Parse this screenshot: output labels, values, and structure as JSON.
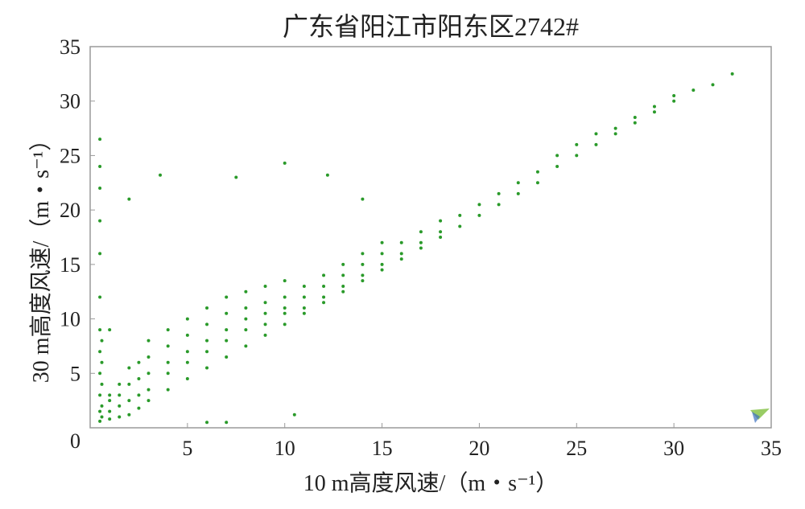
{
  "chart_data": {
    "type": "scatter",
    "title": "广东省阳江市阳东区2742#",
    "x_label": "10 m高度风速/（m・s⁻¹）",
    "y_label": "30 m高度风速/（m・s⁻¹）",
    "color": "#2a9a2a",
    "xlim": [
      0,
      35
    ],
    "xticks": [
      5,
      10,
      15,
      20,
      25,
      30,
      35
    ],
    "ylim": [
      0,
      35
    ],
    "yticks": [
      0,
      5,
      10,
      15,
      20,
      25,
      30,
      35
    ],
    "x": [
      0.5,
      0.5,
      0.5,
      0.5,
      0.5,
      0.5,
      0.5,
      0.5,
      0.5,
      0.5,
      0.5,
      0.5,
      0.6,
      0.6,
      0.6,
      0.6,
      0.6,
      1,
      1,
      1,
      1,
      1,
      1.5,
      1.5,
      1.5,
      1.5,
      2,
      2,
      2,
      2,
      2.5,
      2.5,
      2.5,
      2.5,
      3,
      3,
      3,
      3,
      3,
      4,
      4,
      4,
      4,
      4,
      5,
      5,
      5,
      5,
      5,
      6,
      6,
      6,
      6,
      6,
      6,
      7,
      7,
      7,
      7,
      7,
      7,
      8,
      8,
      8,
      8,
      8,
      9,
      9,
      9,
      9,
      9,
      10,
      10,
      10,
      10,
      10,
      11,
      11,
      11,
      11,
      12,
      12,
      12,
      12,
      13,
      13,
      13,
      13,
      14,
      14,
      14,
      14,
      15,
      15,
      15,
      15,
      16,
      16,
      16,
      17,
      17,
      17,
      18,
      18,
      18,
      19,
      19,
      20,
      20,
      21,
      21,
      22,
      22,
      23,
      23,
      24,
      24,
      25,
      25,
      26,
      26,
      27,
      27,
      28,
      28,
      29,
      29,
      30,
      30,
      31,
      32,
      33,
      3.6,
      7.5,
      10,
      12.2,
      2,
      14,
      10.5
    ],
    "values": [
      0.6,
      1.5,
      3,
      5,
      7,
      9,
      12,
      16,
      19,
      22,
      24,
      26.5,
      1,
      2,
      4,
      6,
      8,
      0.8,
      1.5,
      2.5,
      3,
      9,
      1,
      2,
      3,
      4,
      1.2,
      2.5,
      4,
      5.5,
      1.8,
      3,
      4.5,
      6,
      2.5,
      3.5,
      5,
      6.5,
      8,
      3.5,
      5,
      6,
      7.5,
      9,
      4.5,
      6,
      7,
      8.5,
      10,
      5.5,
      7,
      8,
      9.5,
      11,
      0.5,
      6.5,
      8,
      9,
      10.5,
      12,
      0.5,
      7.5,
      9,
      10,
      11,
      12.5,
      8.5,
      9.5,
      10.5,
      11.5,
      13,
      9.5,
      10.5,
      11,
      12,
      13.5,
      10.5,
      11,
      12,
      13,
      11.5,
      12,
      13,
      14,
      12.5,
      13,
      14,
      15,
      13.5,
      14,
      15,
      16,
      14.5,
      15,
      16,
      17,
      15.5,
      16,
      17,
      16.5,
      17,
      18,
      17.5,
      18,
      19,
      18.5,
      19.5,
      19.5,
      20.5,
      20.5,
      21.5,
      21.5,
      22.5,
      22.5,
      23.5,
      24,
      25,
      25,
      26,
      26,
      27,
      27,
      27.5,
      28,
      28.5,
      29,
      29.5,
      30,
      30.5,
      31,
      31.5,
      32.5,
      23.2,
      23,
      24.3,
      23.2,
      21,
      21,
      1.2
    ]
  }
}
